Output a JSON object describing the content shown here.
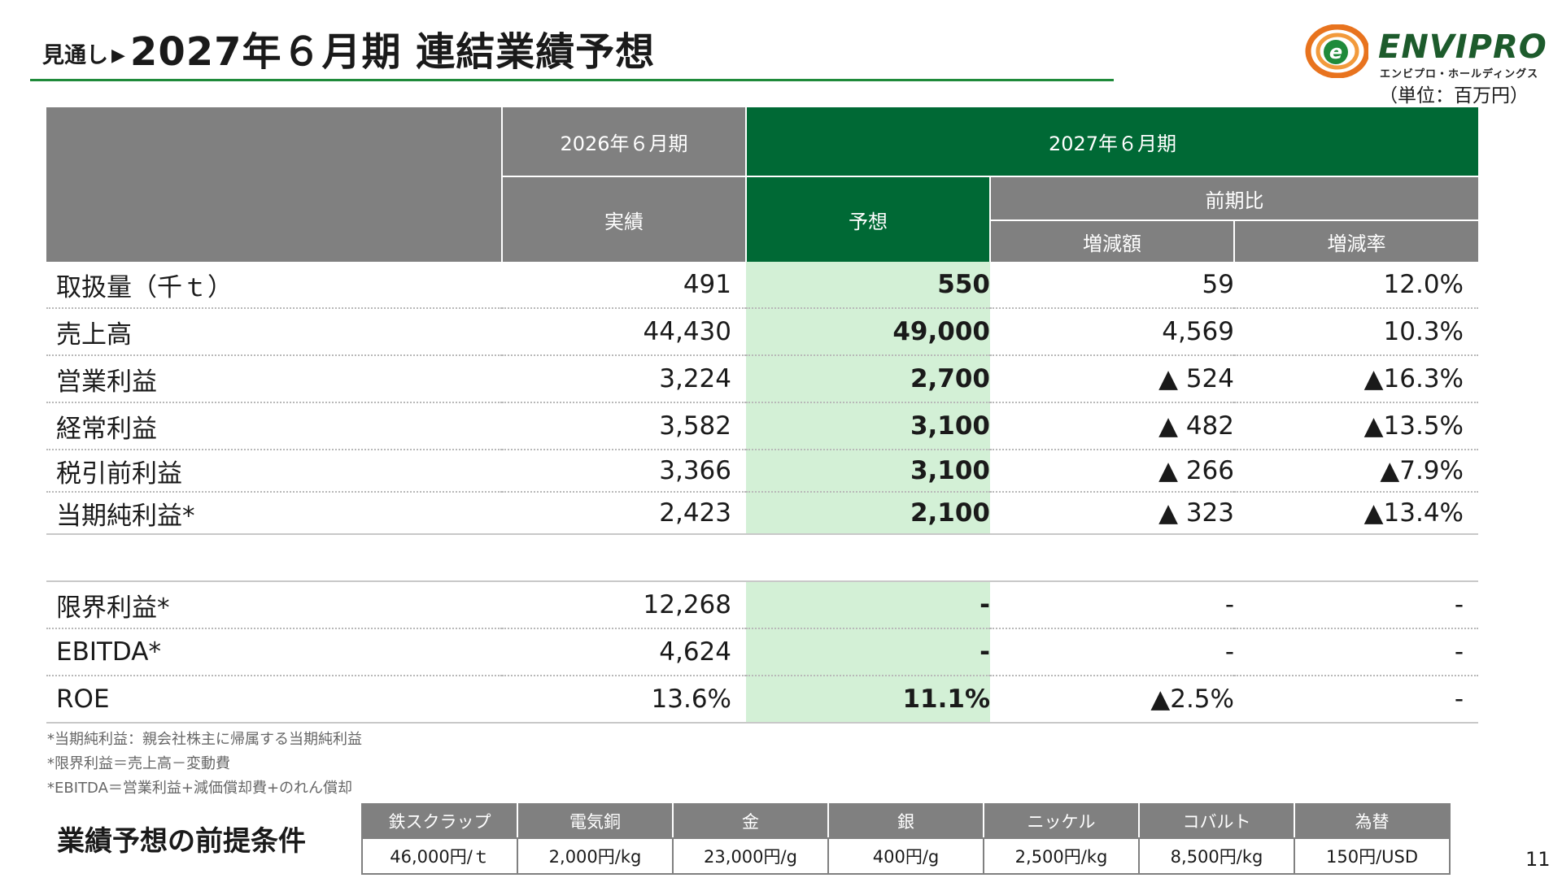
{
  "title": {
    "prefix": "見通し",
    "arrow": "▶",
    "main": "2027年６月期 連結業績予想"
  },
  "logo": {
    "mark": "e",
    "wordmark": "ENVIPRO",
    "subtitle": "エンビプロ・ホールディングス",
    "colors": {
      "mark_orange": "#e8731e",
      "mark_green": "#1f8a3a",
      "word": "#1d5b2c"
    }
  },
  "unit": "（単位：百万円）",
  "table": {
    "header": {
      "col_prev": "2026年６月期",
      "col_next": "2027年６月期",
      "actual": "実績",
      "forecast": "予想",
      "yoy": "前期比",
      "change_amount": "増減額",
      "change_rate": "増減率"
    },
    "rows": [
      {
        "label": "取扱量（千ｔ）",
        "actual": "491",
        "forecast": "550",
        "change": "59",
        "rate": "12.0%"
      },
      {
        "label": "売上高",
        "actual": "44,430",
        "forecast": "49,000",
        "change": "4,569",
        "rate": "10.3%"
      },
      {
        "label": "営業利益",
        "actual": "3,224",
        "forecast": "2,700",
        "change": "▲ 524",
        "rate": "▲16.3%"
      },
      {
        "label": "経常利益",
        "actual": "3,582",
        "forecast": "3,100",
        "change": "▲ 482",
        "rate": "▲13.5%"
      },
      {
        "label": "税引前利益",
        "actual": "3,366",
        "forecast": "3,100",
        "change": "▲ 266",
        "rate": "▲7.9%"
      },
      {
        "label": "当期純利益*",
        "actual": "2,423",
        "forecast": "2,100",
        "change": "▲ 323",
        "rate": "▲13.4%"
      }
    ],
    "rows2": [
      {
        "label": "限界利益*",
        "actual": "12,268",
        "forecast": "-",
        "change": "-",
        "rate": "-"
      },
      {
        "label": "EBITDA*",
        "actual": "4,624",
        "forecast": "-",
        "change": "-",
        "rate": "-"
      },
      {
        "label": "ROE",
        "actual": "13.6%",
        "forecast": "11.1%",
        "change": "▲2.5%",
        "rate": "-"
      }
    ],
    "colors": {
      "header_gray": "#808080",
      "header_green": "#006935",
      "forecast_fill": "#d3f0d6"
    }
  },
  "notes": [
    "*当期純利益：親会社株主に帰属する当期純利益",
    "*限界利益＝売上高－変動費",
    "*EBITDA＝営業利益+減価償却費+のれん償却"
  ],
  "assumptions": {
    "title": "業績予想の前提条件",
    "headers": [
      "鉄スクラップ",
      "電気銅",
      "金",
      "銀",
      "ニッケル",
      "コバルト",
      "為替"
    ],
    "values": [
      "46,000円/ｔ",
      "2,000円/kg",
      "23,000円/g",
      "400円/g",
      "2,500円/kg",
      "8,500円/kg",
      "150円/USD"
    ]
  },
  "page_number": "11"
}
